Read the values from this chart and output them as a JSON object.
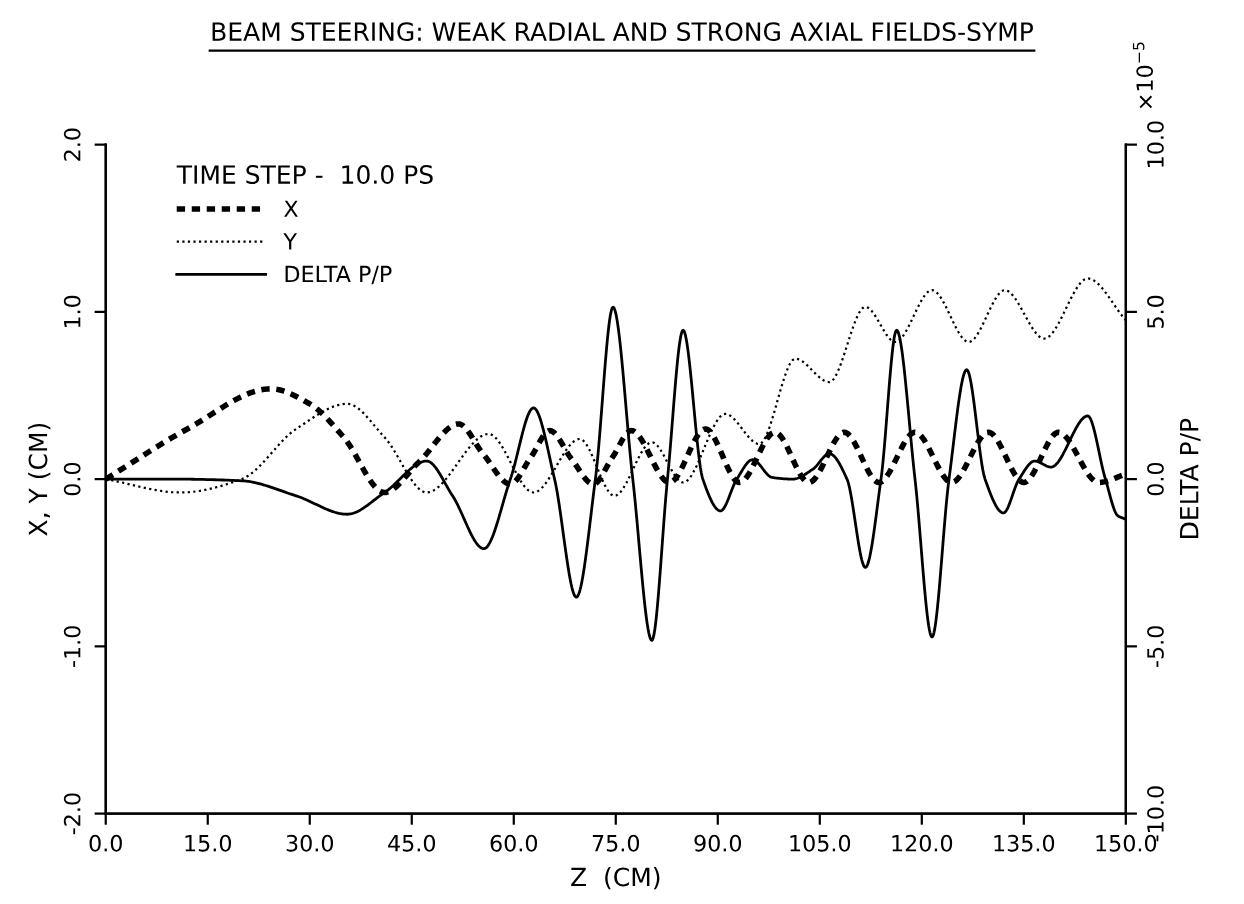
{
  "chart_data": {
    "type": "line",
    "title": "BEAM STEERING: WEAK RADIAL AND STRONG AXIAL FIELDS-SYMP",
    "xlabel": "Z  (CM)",
    "ylabel": "X, Y (CM)",
    "y2label": "DELTA P/P",
    "legend_title": "TIME STEP -  10.0 PS",
    "legend": "top left",
    "grid": false,
    "marker": "none",
    "annotations": [
      "×10$^{−5}$"
    ],
    "xlim": [
      0,
      150
    ],
    "xticks": [
      {
        "value": 0,
        "label": "0.0"
      },
      {
        "value": 15,
        "label": "15.0"
      },
      {
        "value": 30,
        "label": "30.0"
      },
      {
        "value": 45,
        "label": "45.0"
      },
      {
        "value": 60,
        "label": "60.0"
      },
      {
        "value": 75,
        "label": "75.0"
      },
      {
        "value": 90,
        "label": "90.0"
      },
      {
        "value": 105,
        "label": "105.0"
      },
      {
        "value": 120,
        "label": "120.0"
      },
      {
        "value": 135,
        "label": "135.0"
      },
      {
        "value": 150,
        "label": "150.0"
      }
    ],
    "ylim": [
      -2,
      2
    ],
    "yticks": [
      {
        "value": -2,
        "label": "-2.0"
      },
      {
        "value": -1,
        "label": "-1.0"
      },
      {
        "value": 0,
        "label": "0.0"
      },
      {
        "value": 1,
        "label": "1.0"
      },
      {
        "value": 2,
        "label": "2.0"
      }
    ],
    "y2lim": [
      -10,
      10
    ],
    "y2ticks": [
      {
        "value": -10,
        "label": "-10.0"
      },
      {
        "value": -5,
        "label": "-5.0"
      },
      {
        "value": 0,
        "label": "0.0"
      },
      {
        "value": 5,
        "label": "5.0"
      },
      {
        "value": 10,
        "label": "10.0"
      }
    ],
    "series": [
      {
        "name": "X",
        "color": "#000000",
        "line_style": "dashed",
        "x": [
          0,
          12,
          24.3,
          30,
          35,
          41,
          46,
          51.9,
          55.5,
          59.5,
          62.5,
          65.3,
          68.5,
          71.7,
          74.5,
          77.3,
          82.9,
          88.2,
          93.2,
          98.4,
          103.4,
          108.6,
          113.7,
          119,
          124.4,
          129.8,
          135,
          140.1,
          146,
          150
        ],
        "values": [
          0,
          0.3,
          0.54,
          0.45,
          0.25,
          -0.08,
          0.1,
          0.33,
          0.15,
          -0.03,
          0.13,
          0.29,
          0.12,
          -0.03,
          0.13,
          0.29,
          -0.02,
          0.3,
          -0.02,
          0.28,
          -0.02,
          0.28,
          -0.02,
          0.28,
          -0.02,
          0.28,
          -0.02,
          0.28,
          -0.02,
          0.03
        ]
      },
      {
        "name": "Y",
        "color": "#000000",
        "line_style": "dotted",
        "x": [
          0,
          11,
          20,
          28,
          35.5,
          41,
          47.2,
          56.3,
          62.9,
          69.7,
          74.8,
          80.3,
          84.9,
          91.1,
          96.1,
          101.4,
          106.4,
          111.7,
          116.1,
          121.5,
          126.9,
          132.2,
          138,
          144.4,
          150
        ],
        "values": [
          0,
          -0.08,
          0,
          0.3,
          0.45,
          0.25,
          -0.08,
          0.27,
          -0.08,
          0.24,
          -0.1,
          0.22,
          -0.02,
          0.39,
          0.21,
          0.72,
          0.58,
          1.03,
          0.82,
          1.13,
          0.82,
          1.13,
          0.84,
          1.2,
          0.95
        ]
      },
      {
        "name": "DELTA P/P",
        "color": "#000000",
        "line_style": "solid",
        "axis": "y2",
        "x": [
          0,
          10,
          20,
          28,
          35.5,
          41,
          47.2,
          51,
          55.6,
          59.5,
          62.9,
          66,
          69.2,
          72,
          74.6,
          77.5,
          80.3,
          82.6,
          84.9,
          87.8,
          90.4,
          92.8,
          95.1,
          98,
          101,
          104,
          106.4,
          109,
          111.7,
          114,
          116.3,
          119,
          121.5,
          124,
          126.6,
          129.3,
          132,
          134.3,
          136.6,
          139,
          144.4,
          147,
          148.8,
          150
        ],
        "values": [
          0,
          0,
          -0.05,
          -0.5,
          -1.05,
          -0.4,
          0.54,
          -0.5,
          -2.08,
          0,
          2.13,
          0,
          -3.53,
          0,
          5.14,
          0,
          -4.82,
          0,
          4.45,
          0,
          -0.95,
          0,
          0.58,
          0.05,
          0,
          0.3,
          0.76,
          0,
          -2.64,
          0,
          4.45,
          0,
          -4.72,
          0,
          3.27,
          0,
          -1.01,
          0,
          0.54,
          0.36,
          1.89,
          0,
          -1.09,
          -1.2
        ]
      }
    ]
  }
}
